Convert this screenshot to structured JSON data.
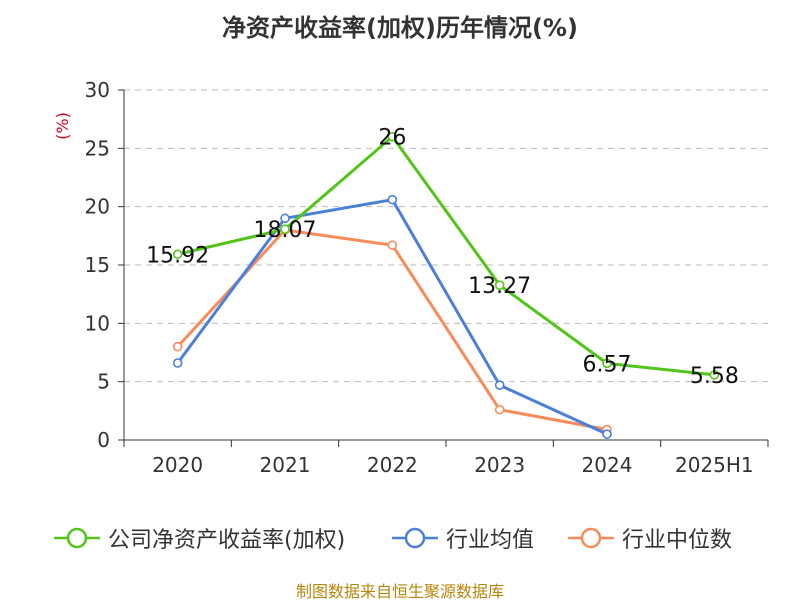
{
  "title": "净资产收益率(加权)历年情况(%)",
  "source": "制图数据来自恒生聚源数据库",
  "chart_data": {
    "type": "line",
    "title": "净资产收益率(加权)历年情况(%)",
    "ylabel": "(%)",
    "xlabel": "",
    "categories": [
      "2020",
      "2021",
      "2022",
      "2023",
      "2024",
      "2025H1"
    ],
    "ylim": [
      0,
      30
    ],
    "yticks": [
      0,
      5,
      10,
      15,
      20,
      25,
      30
    ],
    "grid": true,
    "legend_position": "bottom",
    "series": [
      {
        "name": "公司净资产收益率(加权)",
        "color": "#52c41a",
        "values": [
          15.92,
          18.07,
          26,
          13.27,
          6.57,
          5.58
        ],
        "labels": [
          "15.92",
          "18.07",
          "26",
          "13.27",
          "6.57",
          "5.58"
        ]
      },
      {
        "name": "行业均值",
        "color": "#4a7fdb",
        "values": [
          6.6,
          19.0,
          20.6,
          4.7,
          0.5,
          null
        ]
      },
      {
        "name": "行业中位数",
        "color": "#f78c5a",
        "values": [
          8.0,
          18.0,
          16.7,
          2.6,
          0.9,
          null
        ]
      }
    ]
  }
}
